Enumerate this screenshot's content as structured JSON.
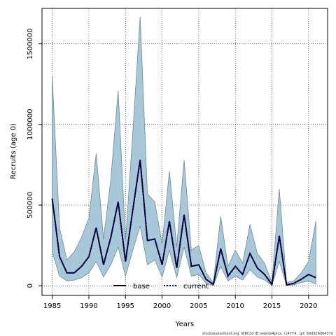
{
  "chart_data": {
    "type": "line",
    "xlabel": "Years",
    "ylabel": "Recruits (age 0)",
    "xlim": [
      1983.6,
      2022.6
    ],
    "ylim": [
      -60000,
      1720000
    ],
    "x_ticks": [
      1985,
      1990,
      1995,
      2000,
      2005,
      2010,
      2015,
      2020
    ],
    "y_ticks": [
      0,
      500000,
      1000000,
      1500000
    ],
    "y_tick_labels": [
      "0",
      "500000",
      "1000000",
      "1500000"
    ],
    "grid": true,
    "legend_position": "bottom-center",
    "band_color": "#a7c8d8",
    "band_stroke": "#6e8a98",
    "x": [
      1985,
      1986,
      1987,
      1988,
      1989,
      1990,
      1991,
      1992,
      1993,
      1994,
      1995,
      1996,
      1997,
      1998,
      1999,
      2000,
      2001,
      2002,
      2003,
      2004,
      2005,
      2006,
      2007,
      2008,
      2009,
      2010,
      2011,
      2012,
      2013,
      2014,
      2015,
      2016,
      2017,
      2018,
      2019,
      2020,
      2021
    ],
    "upper": [
      1300000,
      360000,
      160000,
      210000,
      300000,
      420000,
      820000,
      290000,
      660000,
      1210000,
      280000,
      950000,
      1670000,
      570000,
      520000,
      260000,
      710000,
      240000,
      780000,
      220000,
      250000,
      80000,
      20000,
      430000,
      120000,
      220000,
      140000,
      380000,
      200000,
      140000,
      20000,
      600000,
      20000,
      30000,
      80000,
      150000,
      400000
    ],
    "lower": [
      210000,
      60000,
      30000,
      35000,
      50000,
      80000,
      150000,
      55000,
      130000,
      240000,
      60000,
      220000,
      370000,
      130000,
      160000,
      55000,
      220000,
      50000,
      240000,
      60000,
      70000,
      15000,
      3000,
      120000,
      30000,
      60000,
      35000,
      100000,
      55000,
      35000,
      3000,
      150000,
      2000,
      5000,
      20000,
      30000,
      10000
    ],
    "series": [
      {
        "name": "current",
        "color": "#000080",
        "style": "dashed",
        "values": [
          540000,
          180000,
          80000,
          80000,
          120000,
          180000,
          360000,
          130000,
          300000,
          520000,
          150000,
          470000,
          780000,
          280000,
          290000,
          130000,
          400000,
          110000,
          440000,
          120000,
          130000,
          40000,
          8000,
          230000,
          60000,
          120000,
          70000,
          200000,
          110000,
          70000,
          8000,
          310000,
          5000,
          15000,
          40000,
          70000,
          50000
        ]
      },
      {
        "name": "base",
        "color": "#000000",
        "style": "solid",
        "values": [
          540000,
          180000,
          80000,
          80000,
          120000,
          180000,
          360000,
          130000,
          300000,
          520000,
          150000,
          470000,
          780000,
          280000,
          290000,
          130000,
          400000,
          110000,
          440000,
          120000,
          130000,
          40000,
          8000,
          230000,
          60000,
          120000,
          70000,
          200000,
          110000,
          70000,
          8000,
          310000,
          5000,
          15000,
          40000,
          70000,
          50000
        ]
      }
    ],
    "legend": [
      {
        "label": "base",
        "style": "solid",
        "color": "#000000"
      },
      {
        "label": "current",
        "style": "dashed",
        "color": "#000080"
      }
    ],
    "footer": "stockassessment.org,  WBCod  IB  newIdx4plus,  r14774 ,  git:  69d926d0437d"
  }
}
